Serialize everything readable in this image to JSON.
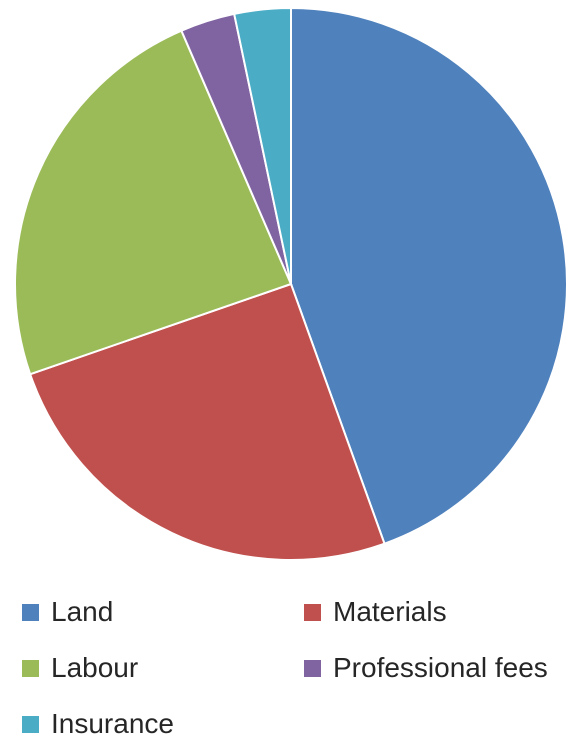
{
  "chart_data": {
    "type": "pie",
    "title": "",
    "slices": [
      {
        "label": "Land",
        "value": 44.5,
        "color": "#4f81bd"
      },
      {
        "label": "Materials",
        "value": 25.2,
        "color": "#c0504d"
      },
      {
        "label": "Labour",
        "value": 23.8,
        "color": "#9bbb59"
      },
      {
        "label": "Professional fees",
        "value": 3.2,
        "color": "#8064a2"
      },
      {
        "label": "Insurance",
        "value": 3.3,
        "color": "#4bacc6"
      }
    ],
    "start_angle_deg": 0,
    "direction": "clockwise",
    "legend_position": "bottom"
  }
}
